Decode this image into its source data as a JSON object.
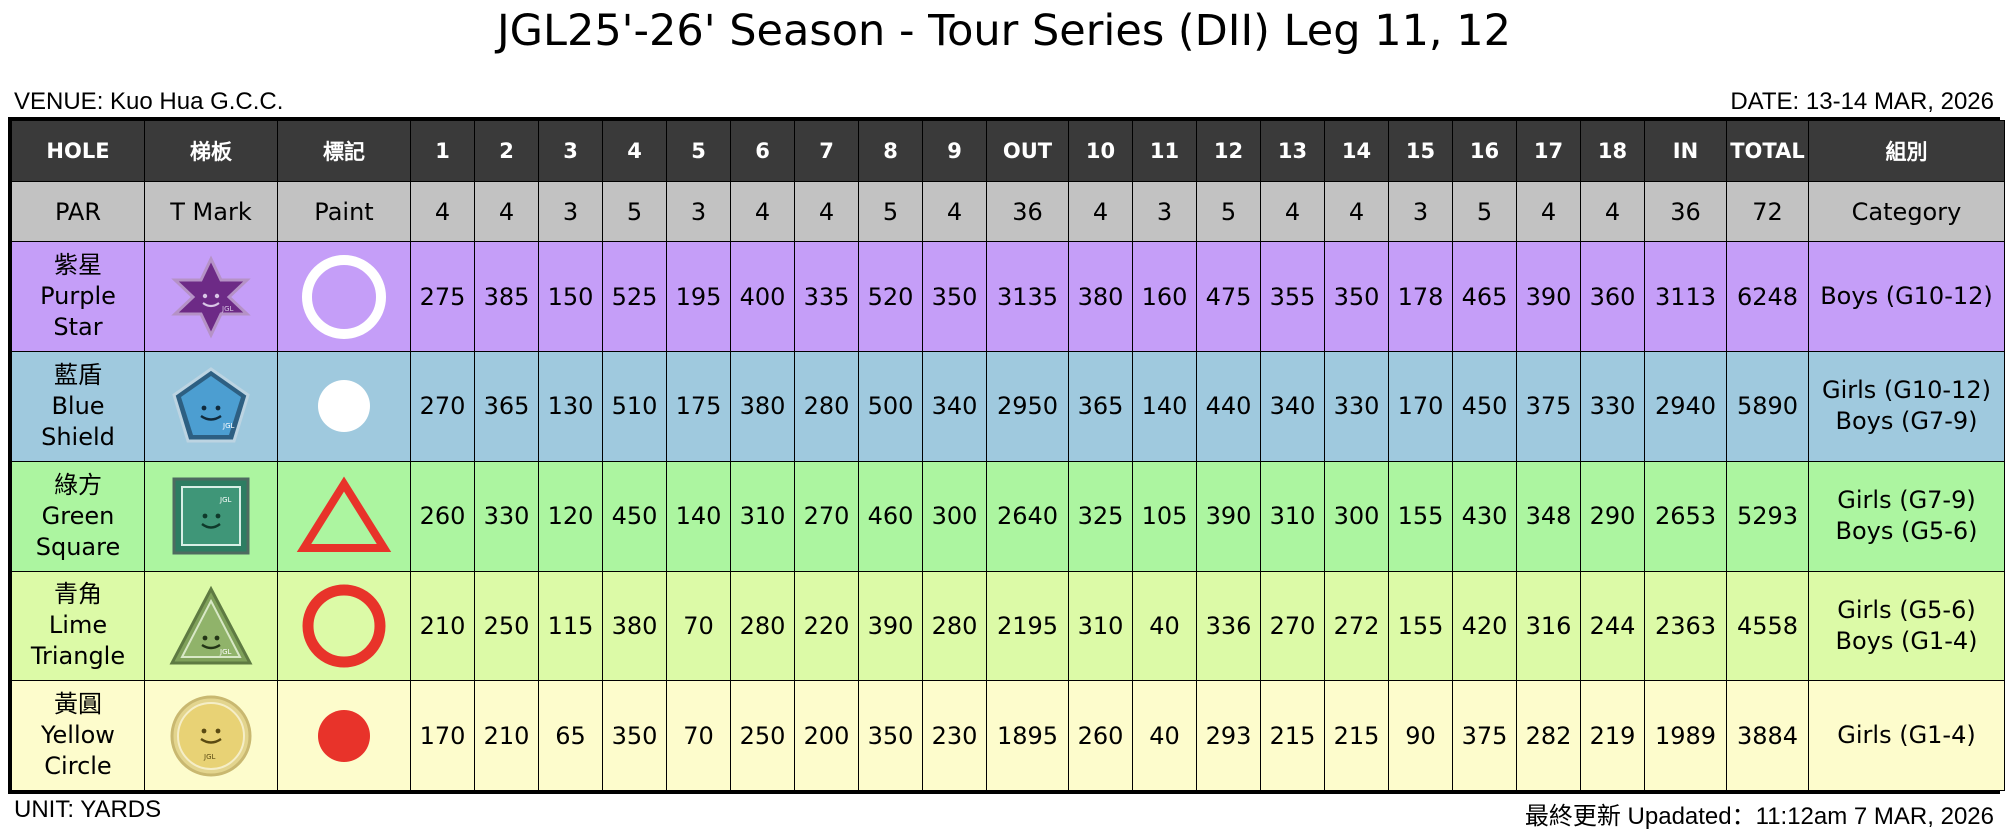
{
  "title": "JGL25'-26' Season - Tour Series (DII) Leg 11, 12",
  "venue": "VENUE: Kuo Hua G.C.C.",
  "date": "DATE: 13-14 MAR, 2026",
  "unit": "UNIT: YARDS",
  "updated": "最終更新 Upadated：11:12am 7 MAR, 2026",
  "header": [
    "HOLE",
    "梯板",
    "標記",
    "1",
    "2",
    "3",
    "4",
    "5",
    "6",
    "7",
    "8",
    "9",
    "OUT",
    "10",
    "11",
    "12",
    "13",
    "14",
    "15",
    "16",
    "17",
    "18",
    "IN",
    "TOTAL",
    "組別"
  ],
  "par_row": [
    "PAR",
    "T Mark",
    "Paint",
    "4",
    "4",
    "3",
    "5",
    "3",
    "4",
    "4",
    "5",
    "4",
    "36",
    "4",
    "3",
    "5",
    "4",
    "4",
    "3",
    "5",
    "4",
    "4",
    "36",
    "72",
    "Category"
  ],
  "tees": [
    {
      "name_zh": "紫星",
      "name_en": "Purple Star",
      "name_en2": "",
      "mark_icon": "purple-star-icon",
      "paint_icon": "white-ring-icon",
      "color": "#c59ef8",
      "yards": [
        "275",
        "385",
        "150",
        "525",
        "195",
        "400",
        "335",
        "520",
        "350",
        "3135",
        "380",
        "160",
        "475",
        "355",
        "350",
        "178",
        "465",
        "390",
        "360",
        "3113",
        "6248"
      ],
      "category": [
        "Boys (G10-12)"
      ]
    },
    {
      "name_zh": "藍盾",
      "name_en": "Blue",
      "name_en2": "Shield",
      "mark_icon": "blue-shield-icon",
      "paint_icon": "white-dot-icon",
      "color": "#9fc9de",
      "yards": [
        "270",
        "365",
        "130",
        "510",
        "175",
        "380",
        "280",
        "500",
        "340",
        "2950",
        "365",
        "140",
        "440",
        "340",
        "330",
        "170",
        "450",
        "375",
        "330",
        "2940",
        "5890"
      ],
      "category": [
        "Girls (G10-12)",
        "Boys (G7-9)"
      ]
    },
    {
      "name_zh": "綠方",
      "name_en": "Green",
      "name_en2": "Square",
      "mark_icon": "green-square-icon",
      "paint_icon": "red-triangle-icon",
      "color": "#acf5a0",
      "yards": [
        "260",
        "330",
        "120",
        "450",
        "140",
        "310",
        "270",
        "460",
        "300",
        "2640",
        "325",
        "105",
        "390",
        "310",
        "300",
        "155",
        "430",
        "348",
        "290",
        "2653",
        "5293"
      ],
      "category": [
        "Girls (G7-9)",
        "Boys (G5-6)"
      ]
    },
    {
      "name_zh": "青角",
      "name_en": "Lime",
      "name_en2": "Triangle",
      "mark_icon": "lime-triangle-icon",
      "paint_icon": "red-ring-icon",
      "color": "#dcfaa7",
      "yards": [
        "210",
        "250",
        "115",
        "380",
        "70",
        "280",
        "220",
        "390",
        "280",
        "2195",
        "310",
        "40",
        "336",
        "270",
        "272",
        "155",
        "420",
        "316",
        "244",
        "2363",
        "4558"
      ],
      "category": [
        "Girls (G5-6)",
        "Boys (G1-4)"
      ]
    },
    {
      "name_zh": "黃圓",
      "name_en": "Yellow",
      "name_en2": "Circle",
      "mark_icon": "yellow-circle-icon",
      "paint_icon": "red-dot-icon",
      "color": "#fdfccc",
      "yards": [
        "170",
        "210",
        "65",
        "350",
        "70",
        "250",
        "200",
        "350",
        "230",
        "1895",
        "260",
        "40",
        "293",
        "215",
        "215",
        "90",
        "375",
        "282",
        "219",
        "1989",
        "3884"
      ],
      "category": [
        "Girls (G1-4)"
      ]
    }
  ]
}
